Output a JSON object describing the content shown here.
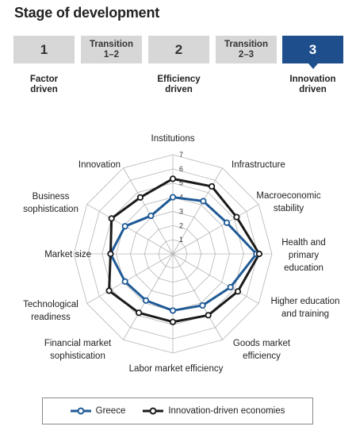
{
  "title": "Stage of development",
  "stages": [
    {
      "label": "1",
      "caption": "Factor\ndriven",
      "active": false,
      "kind": "stage"
    },
    {
      "label": "Transition\n1–2",
      "caption": "",
      "active": false,
      "kind": "transition"
    },
    {
      "label": "2",
      "caption": "Efficiency\ndriven",
      "active": false,
      "kind": "stage"
    },
    {
      "label": "Transition\n2–3",
      "caption": "",
      "active": false,
      "kind": "transition"
    },
    {
      "label": "3",
      "caption": "Innovation\ndriven",
      "active": true,
      "kind": "stage"
    }
  ],
  "colors": {
    "greece": "#1f5a96",
    "innovation": "#1a1a1a",
    "grid": "#b5b5b5",
    "active_stage": "#1f4e8c"
  },
  "chart_data": {
    "type": "radar",
    "axes": [
      "Institutions",
      "Infrastructure",
      "Macroeconomic\nstability",
      "Health and\nprimary\neducation",
      "Higher education\nand training",
      "Goods market\nefficiency",
      "Labor market efficiency",
      "Financial market\nsophistication",
      "Technological\nreadiness",
      "Market size",
      "Business\nsophistication",
      "Innovation"
    ],
    "range": [
      1,
      7
    ],
    "ticks": [
      "1",
      "2",
      "3",
      "4",
      "5",
      "6",
      "7"
    ],
    "series": [
      {
        "name": "Greece",
        "values": [
          4.0,
          4.3,
          4.4,
          5.9,
          4.7,
          4.2,
          4.0,
          3.8,
          3.9,
          4.4,
          3.9,
          3.1
        ]
      },
      {
        "name": "Innovation-driven economies",
        "values": [
          5.3,
          5.5,
          5.2,
          6.1,
          5.3,
          5.0,
          4.8,
          4.8,
          5.2,
          4.4,
          5.0,
          4.6
        ]
      }
    ],
    "legend_position": "bottom"
  }
}
